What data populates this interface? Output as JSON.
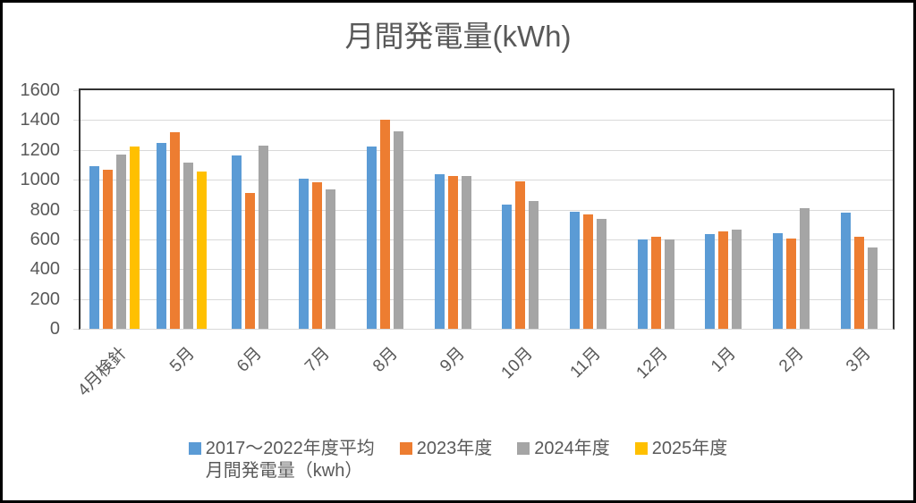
{
  "chart_data": {
    "type": "bar",
    "title": "月間発電量(kWh)",
    "categories": [
      "4月検針",
      "5月",
      "6月",
      "7月",
      "8月",
      "9月",
      "10月",
      "11月",
      "12月",
      "1月",
      "2月",
      "3月"
    ],
    "series": [
      {
        "name": "2017～2022年度平均 月間発電量（kwh）",
        "name_lines": [
          "2017～2022年度平均",
          "月間発電量（kwh）"
        ],
        "color": "#5B9BD5",
        "values": [
          1090,
          1245,
          1160,
          1005,
          1220,
          1035,
          835,
          785,
          600,
          635,
          640,
          780
        ]
      },
      {
        "name": "2023年度",
        "name_lines": [
          "2023年度"
        ],
        "color": "#ED7D31",
        "values": [
          1065,
          1320,
          910,
          985,
          1405,
          1025,
          990,
          770,
          620,
          655,
          605,
          615
        ]
      },
      {
        "name": "2024年度",
        "name_lines": [
          "2024年度"
        ],
        "color": "#A5A5A5",
        "values": [
          1170,
          1115,
          1230,
          935,
          1325,
          1025,
          860,
          735,
          600,
          665,
          810,
          545
        ]
      },
      {
        "name": "2025年度",
        "name_lines": [
          "2025年度"
        ],
        "color": "#FFC000",
        "values": [
          1225,
          1055,
          null,
          null,
          null,
          null,
          null,
          null,
          null,
          null,
          null,
          null
        ]
      }
    ],
    "ylim": [
      0,
      1600
    ],
    "y_tick_step": 200,
    "y_tick_labels": [
      "0",
      "200",
      "400",
      "600",
      "800",
      "1000",
      "1200",
      "1400",
      "1600"
    ],
    "grid": true,
    "legend_position": "bottom"
  },
  "colors": {
    "title_text": "#595959",
    "axis_text": "#595959",
    "gridline": "#D9D9D9",
    "plot_border": "#333333",
    "outer_border": "#000000",
    "background": "#FFFFFF"
  }
}
